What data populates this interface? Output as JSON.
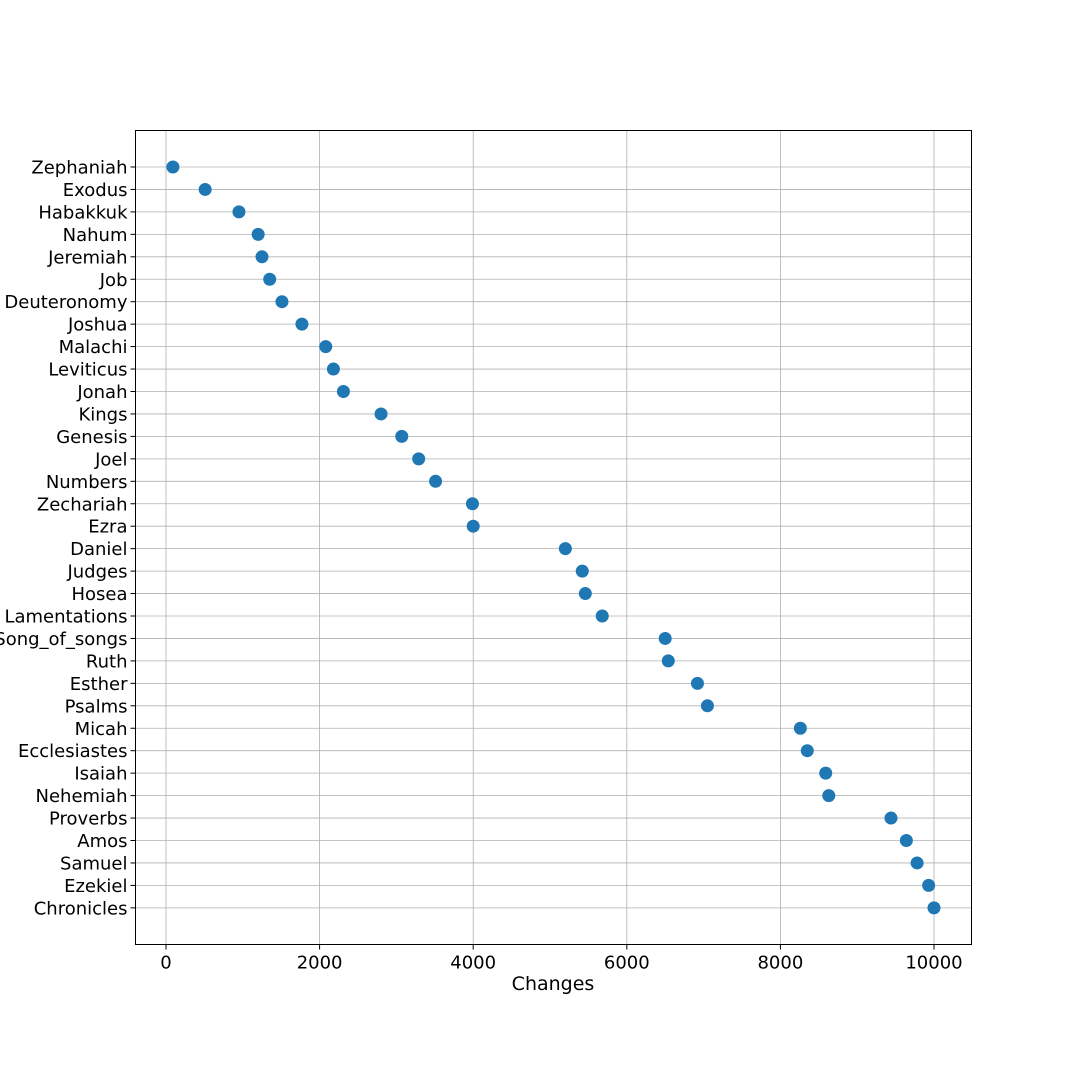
{
  "chart_data": {
    "type": "scatter",
    "title": "",
    "xlabel": "Changes",
    "ylabel": "",
    "xlim": [
      -400,
      10500
    ],
    "xticks": [
      0,
      2000,
      4000,
      6000,
      8000,
      10000
    ],
    "xtick_labels": [
      "0",
      "2000",
      "4000",
      "6000",
      "8000",
      "10000"
    ],
    "grid": true,
    "marker_color": "#1f77b4",
    "points": [
      {
        "label": "Zephaniah",
        "value": 90
      },
      {
        "label": "Exodus",
        "value": 510
      },
      {
        "label": "Habakkuk",
        "value": 950
      },
      {
        "label": "Nahum",
        "value": 1200
      },
      {
        "label": "Jeremiah",
        "value": 1250
      },
      {
        "label": "Job",
        "value": 1350
      },
      {
        "label": "Deuteronomy",
        "value": 1510
      },
      {
        "label": "Joshua",
        "value": 1770
      },
      {
        "label": "Malachi",
        "value": 2080
      },
      {
        "label": "Leviticus",
        "value": 2180
      },
      {
        "label": "Jonah",
        "value": 2310
      },
      {
        "label": "Kings",
        "value": 2800
      },
      {
        "label": "Genesis",
        "value": 3070
      },
      {
        "label": "Joel",
        "value": 3290
      },
      {
        "label": "Numbers",
        "value": 3510
      },
      {
        "label": "Zechariah",
        "value": 3990
      },
      {
        "label": "Ezra",
        "value": 4000
      },
      {
        "label": "Daniel",
        "value": 5200
      },
      {
        "label": "Judges",
        "value": 5420
      },
      {
        "label": "Hosea",
        "value": 5460
      },
      {
        "label": "Lamentations",
        "value": 5680
      },
      {
        "label": "Song_of_songs",
        "value": 6500
      },
      {
        "label": "Ruth",
        "value": 6540
      },
      {
        "label": "Esther",
        "value": 6920
      },
      {
        "label": "Psalms",
        "value": 7050
      },
      {
        "label": "Micah",
        "value": 8260
      },
      {
        "label": "Ecclesiastes",
        "value": 8350
      },
      {
        "label": "Isaiah",
        "value": 8590
      },
      {
        "label": "Nehemiah",
        "value": 8630
      },
      {
        "label": "Proverbs",
        "value": 9440
      },
      {
        "label": "Amos",
        "value": 9640
      },
      {
        "label": "Samuel",
        "value": 9780
      },
      {
        "label": "Ezekiel",
        "value": 9930
      },
      {
        "label": "Chronicles",
        "value": 10000
      }
    ]
  }
}
